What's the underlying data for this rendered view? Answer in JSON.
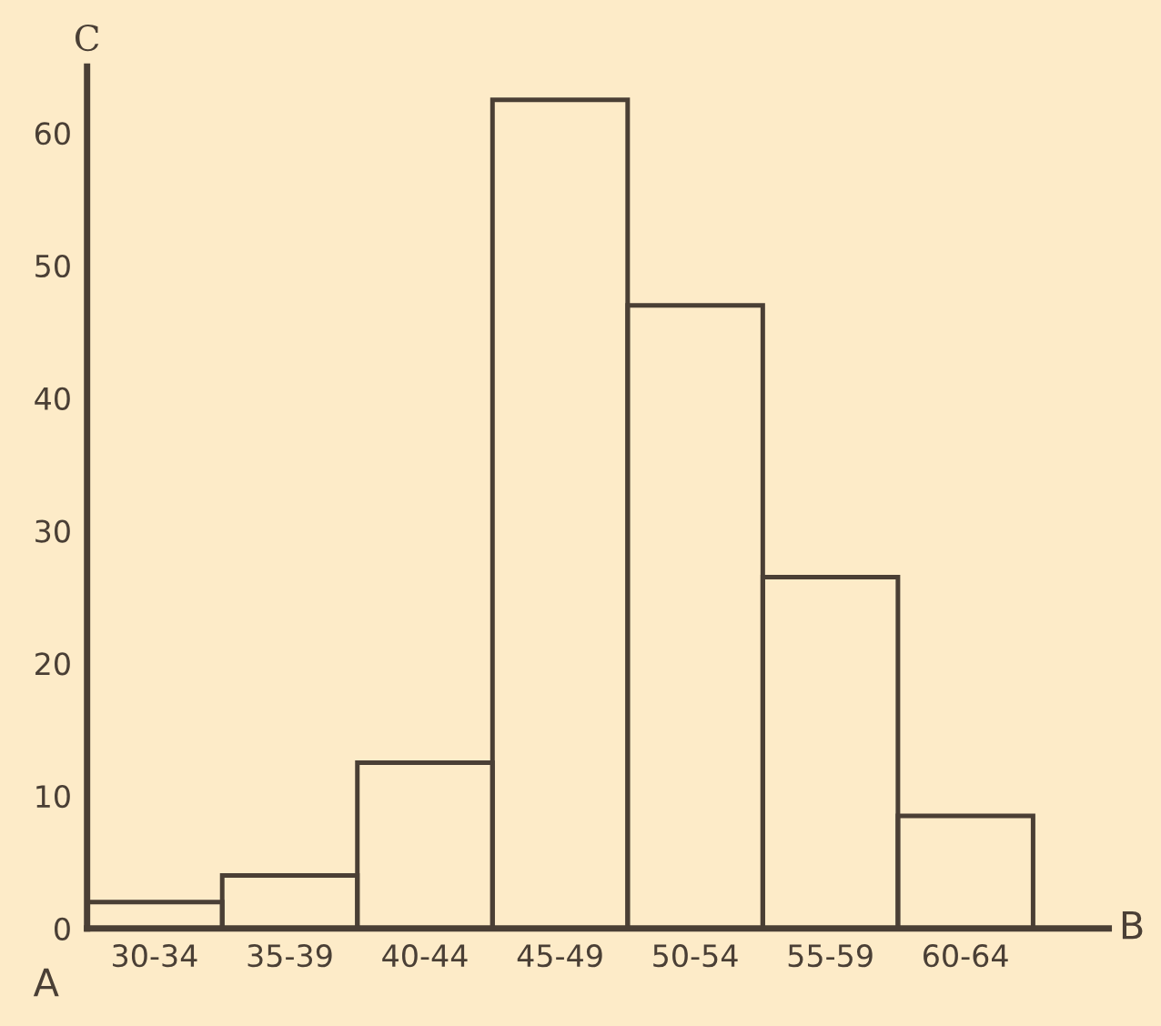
{
  "chart_data": {
    "type": "bar",
    "categories": [
      "30-34",
      "35-39",
      "40-44",
      "45-49",
      "50-54",
      "55-59",
      "60-64"
    ],
    "values": [
      2,
      4,
      12.5,
      62.5,
      47,
      26.5,
      8.5
    ],
    "color": "#4a3f35",
    "ylabel": "C",
    "xlabel": "B",
    "annotations": [
      "A"
    ],
    "ylim": [
      0,
      65
    ],
    "yticks": [
      0,
      10,
      20,
      30,
      40,
      50,
      60
    ],
    "grid": false,
    "legend": false
  }
}
